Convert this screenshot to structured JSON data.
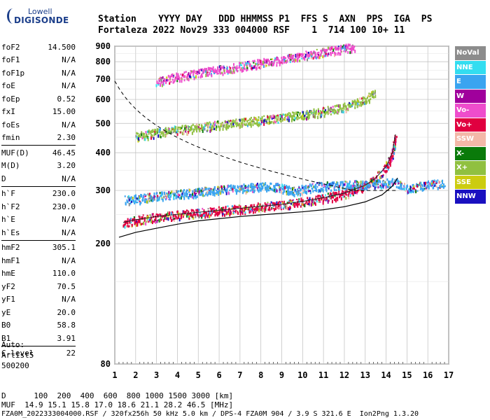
{
  "logo": {
    "line1": "Lowell",
    "line2": "DIGISONDE"
  },
  "header": {
    "labels": "Station    YYYY DAY   DDD HHMMSS P1  FFS S  AXN  PPS  IGA  PS",
    "values": "Fortaleza 2022 Nov29 333 004000 RSF    1  714 100 10+ 11"
  },
  "params": [
    {
      "name": "foF2",
      "value": "14.500"
    },
    {
      "name": "foF1",
      "value": "N/A"
    },
    {
      "name": "foF1p",
      "value": "N/A"
    },
    {
      "name": "foE",
      "value": "N/A"
    },
    {
      "name": "foEp",
      "value": "0.52"
    },
    {
      "name": "fxI",
      "value": "15.00"
    },
    {
      "name": "foEs",
      "value": "N/A"
    },
    {
      "name": "fmin",
      "value": "2.30"
    },
    {
      "sep": true
    },
    {
      "name": "MUF(D)",
      "value": "46.45"
    },
    {
      "name": "M(D)",
      "value": "3.20"
    },
    {
      "name": "D",
      "value": "N/A"
    },
    {
      "sep": true
    },
    {
      "name": "h`F",
      "value": "230.0"
    },
    {
      "name": "h`F2",
      "value": "230.0"
    },
    {
      "name": "h`E",
      "value": "N/A"
    },
    {
      "name": "h`Es",
      "value": "N/A"
    },
    {
      "sep": true
    },
    {
      "name": "hmF2",
      "value": "305.1"
    },
    {
      "name": "hmF1",
      "value": "N/A"
    },
    {
      "name": "hmE",
      "value": "110.0"
    },
    {
      "name": "yF2",
      "value": "70.5"
    },
    {
      "name": "yF1",
      "value": "N/A"
    },
    {
      "name": "yE",
      "value": "20.0"
    },
    {
      "name": "B0",
      "value": "58.8"
    },
    {
      "name": "B1",
      "value": "3.91"
    },
    {
      "sep": true
    },
    {
      "name": "C-level",
      "value": "22"
    }
  ],
  "auto": [
    "Auto:",
    "Artist5",
    "500200"
  ],
  "bottom": {
    "d_row": "D      100  200  400  600  800 1000 1500 3000 [km]",
    "muf_row": "MUF  14.9 15.1 15.8 17.0 18.6 21.1 28.2 46.5 [MHz]",
    "footer": "FZA0M_2022333004000.RSF / 320fx256h 50 kHz 5.0 km / DPS-4 FZA0M 904 / 3.9 S 321.6 E  Ion2Png 1.3.20"
  },
  "legend": [
    {
      "label": "NoVal",
      "color": "#8c8c8c"
    },
    {
      "label": "NNE",
      "color": "#33ddf0"
    },
    {
      "label": "E",
      "color": "#3aa4f0"
    },
    {
      "label": "W",
      "color": "#a0009c"
    },
    {
      "label": "Vo-",
      "color": "#ee4dcc"
    },
    {
      "label": "Vo+",
      "color": "#e00040"
    },
    {
      "label": "SSW",
      "color": "#f3b8a8"
    },
    {
      "label": "X-",
      "color": "#0a7a0a"
    },
    {
      "label": "X+",
      "color": "#90c040"
    },
    {
      "label": "SSE",
      "color": "#cccc10"
    },
    {
      "label": "NNW",
      "color": "#1a10c0"
    }
  ],
  "chart_data": {
    "type": "scatter",
    "x_ticks": [
      "1",
      "2",
      "3",
      "4",
      "5",
      "6",
      "7",
      "8",
      "9",
      "10",
      "11",
      "12",
      "13",
      "14",
      "15",
      "16",
      "17"
    ],
    "y_ticks": [
      "80",
      "200",
      "300",
      "400",
      "500",
      "600",
      "700",
      "800",
      "900"
    ],
    "xlim": [
      1,
      17
    ],
    "y_scale": "log",
    "ylim": [
      80,
      900
    ],
    "grid": true,
    "series": [
      {
        "name": "Vo+",
        "color": "#e00040",
        "points": [
          [
            1.4,
            235
          ],
          [
            2,
            240
          ],
          [
            3,
            246
          ],
          [
            4,
            250
          ],
          [
            5,
            254
          ],
          [
            6,
            258
          ],
          [
            7,
            262
          ],
          [
            8,
            266
          ],
          [
            9,
            270
          ],
          [
            10,
            276
          ],
          [
            11,
            284
          ],
          [
            12,
            294
          ],
          [
            13,
            312
          ],
          [
            13.5,
            330
          ],
          [
            14,
            360
          ],
          [
            14.3,
            400
          ],
          [
            14.45,
            460
          ]
        ]
      },
      {
        "name": "X+",
        "color": "#90c040",
        "points": [
          [
            2,
            455
          ],
          [
            3,
            467
          ],
          [
            4,
            478
          ],
          [
            5,
            487
          ],
          [
            6,
            496
          ],
          [
            7,
            505
          ],
          [
            8,
            515
          ],
          [
            9,
            525
          ],
          [
            10,
            536
          ],
          [
            11,
            550
          ],
          [
            12,
            568
          ],
          [
            13,
            600
          ],
          [
            13.5,
            640
          ]
        ]
      },
      {
        "name": "E",
        "color": "#3aa4f0",
        "points": [
          [
            1.5,
            280
          ],
          [
            2.5,
            285
          ],
          [
            3.5,
            290
          ],
          [
            4.5,
            295
          ],
          [
            5.5,
            300
          ],
          [
            6.5,
            305
          ],
          [
            7.5,
            308
          ],
          [
            8.5,
            312
          ],
          [
            9.5,
            300
          ],
          [
            10.5,
            310
          ],
          [
            14.5,
            320
          ],
          [
            15,
            305
          ],
          [
            16,
            315
          ],
          [
            16.8,
            320
          ]
        ]
      },
      {
        "name": "Vo-",
        "color": "#ee4dcc",
        "points": [
          [
            3,
            690
          ],
          [
            4,
            715
          ],
          [
            5,
            735
          ],
          [
            6,
            755
          ],
          [
            7,
            775
          ],
          [
            8,
            795
          ],
          [
            9,
            815
          ],
          [
            10,
            840
          ],
          [
            11,
            865
          ],
          [
            12,
            890
          ],
          [
            12.5,
            900
          ]
        ]
      }
    ],
    "profile_curve": [
      [
        1.2,
        210
      ],
      [
        2,
        218
      ],
      [
        3,
        225
      ],
      [
        4,
        232
      ],
      [
        5,
        238
      ],
      [
        6,
        242
      ],
      [
        7,
        246
      ],
      [
        8,
        249
      ],
      [
        9,
        252
      ],
      [
        10,
        255
      ],
      [
        11,
        259
      ],
      [
        12,
        265
      ],
      [
        13,
        275
      ],
      [
        13.8,
        290
      ],
      [
        14.3,
        310
      ],
      [
        14.55,
        330
      ]
    ]
  }
}
